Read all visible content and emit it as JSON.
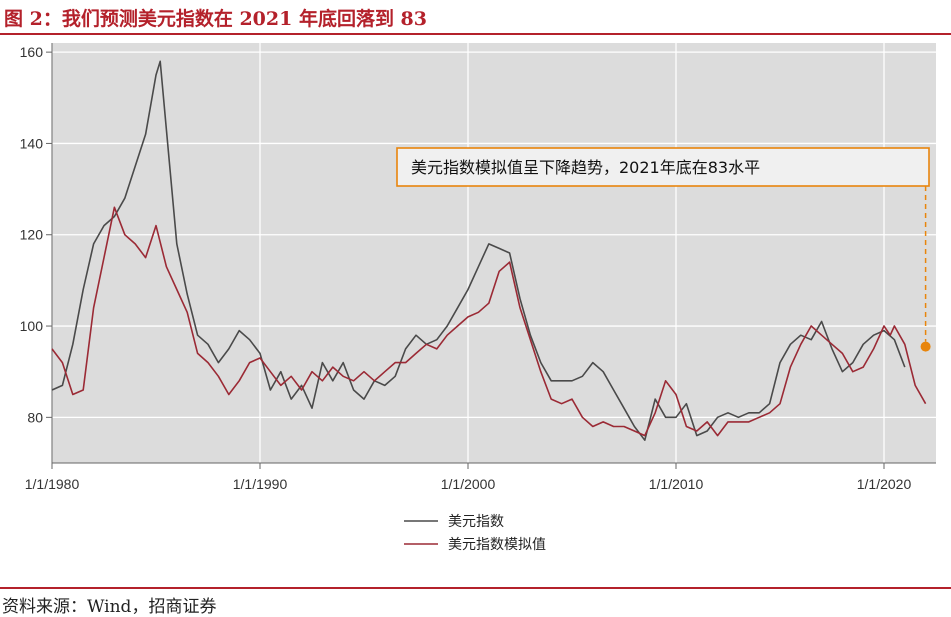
{
  "figure_title": "图 2：我们预测美元指数在 2021 年底回落到 83",
  "source_note": "资料来源：Wind，招商证券",
  "colors": {
    "accent": "#b4212b",
    "dxy_line": "#4a4a4a",
    "model_line": "#9b2a35",
    "annotation": "#e8850c",
    "plot_bg": "#dcdcdc"
  },
  "chart_data": {
    "type": "line",
    "title": "",
    "xlabel": "",
    "ylabel": "",
    "xlim": [
      1980,
      2022.5
    ],
    "ylim": [
      70,
      162
    ],
    "grid": true,
    "legend_position": "bottom-center",
    "x_ticks": [
      {
        "value": 1980,
        "label": "1/1/1980"
      },
      {
        "value": 1990,
        "label": "1/1/1990"
      },
      {
        "value": 2000,
        "label": "1/1/2000"
      },
      {
        "value": 2010,
        "label": "1/1/2010"
      },
      {
        "value": 2020,
        "label": "1/1/2020"
      }
    ],
    "y_ticks": [
      {
        "value": 80,
        "label": "80"
      },
      {
        "value": 100,
        "label": "100"
      },
      {
        "value": 120,
        "label": "120"
      },
      {
        "value": 140,
        "label": "140"
      },
      {
        "value": 160,
        "label": "160"
      }
    ],
    "series": [
      {
        "name": "美元指数",
        "color": "#4a4a4a",
        "x": [
          1980.0,
          1980.5,
          1981.0,
          1981.5,
          1982.0,
          1982.5,
          1983.0,
          1983.5,
          1984.0,
          1984.5,
          1985.0,
          1985.2,
          1985.5,
          1986.0,
          1986.5,
          1987.0,
          1987.5,
          1988.0,
          1988.5,
          1989.0,
          1989.5,
          1990.0,
          1990.5,
          1991.0,
          1991.5,
          1992.0,
          1992.5,
          1993.0,
          1993.5,
          1994.0,
          1994.5,
          1995.0,
          1995.5,
          1996.0,
          1996.5,
          1997.0,
          1997.5,
          1998.0,
          1998.5,
          1999.0,
          1999.5,
          2000.0,
          2000.5,
          2001.0,
          2001.5,
          2002.0,
          2002.5,
          2003.0,
          2003.5,
          2004.0,
          2004.5,
          2005.0,
          2005.5,
          2006.0,
          2006.5,
          2007.0,
          2007.5,
          2008.0,
          2008.5,
          2009.0,
          2009.5,
          2010.0,
          2010.5,
          2011.0,
          2011.5,
          2012.0,
          2012.5,
          2013.0,
          2013.5,
          2014.0,
          2014.5,
          2015.0,
          2015.5,
          2016.0,
          2016.5,
          2017.0,
          2017.5,
          2018.0,
          2018.5,
          2019.0,
          2019.5,
          2020.0,
          2020.5,
          2021.0
        ],
        "y": [
          86,
          87,
          96,
          108,
          118,
          122,
          124,
          128,
          135,
          142,
          155,
          158,
          143,
          118,
          107,
          98,
          96,
          92,
          95,
          99,
          97,
          94,
          86,
          90,
          84,
          87,
          82,
          92,
          88,
          92,
          86,
          84,
          88,
          87,
          89,
          95,
          98,
          96,
          97,
          100,
          104,
          108,
          113,
          118,
          117,
          116,
          106,
          98,
          92,
          88,
          88,
          88,
          89,
          92,
          90,
          86,
          82,
          78,
          75,
          84,
          80,
          80,
          83,
          76,
          77,
          80,
          81,
          80,
          81,
          81,
          83,
          92,
          96,
          98,
          97,
          101,
          95,
          90,
          92,
          96,
          98,
          99,
          97,
          91
        ]
      },
      {
        "name": "美元指数模拟值",
        "color": "#9b2a35",
        "x": [
          1980.0,
          1980.5,
          1981.0,
          1981.5,
          1982.0,
          1982.5,
          1983.0,
          1983.5,
          1984.0,
          1984.5,
          1985.0,
          1985.5,
          1986.0,
          1986.5,
          1987.0,
          1987.5,
          1988.0,
          1988.5,
          1989.0,
          1989.5,
          1990.0,
          1990.5,
          1991.0,
          1991.5,
          1992.0,
          1992.5,
          1993.0,
          1993.5,
          1994.0,
          1994.5,
          1995.0,
          1995.5,
          1996.0,
          1996.5,
          1997.0,
          1997.5,
          1998.0,
          1998.5,
          1999.0,
          1999.5,
          2000.0,
          2000.5,
          2001.0,
          2001.5,
          2002.0,
          2002.5,
          2003.0,
          2003.5,
          2004.0,
          2004.5,
          2005.0,
          2005.5,
          2006.0,
          2006.5,
          2007.0,
          2007.5,
          2008.0,
          2008.5,
          2009.0,
          2009.5,
          2010.0,
          2010.5,
          2011.0,
          2011.5,
          2012.0,
          2012.5,
          2013.0,
          2013.5,
          2014.0,
          2014.5,
          2015.0,
          2015.5,
          2016.0,
          2016.5,
          2017.0,
          2017.5,
          2018.0,
          2018.5,
          2019.0,
          2019.5,
          2020.0,
          2020.3,
          2020.5,
          2021.0,
          2021.5,
          2022.0
        ],
        "y": [
          95,
          92,
          85,
          86,
          104,
          115,
          126,
          120,
          118,
          115,
          122,
          113,
          108,
          103,
          94,
          92,
          89,
          85,
          88,
          92,
          93,
          90,
          87,
          89,
          86,
          90,
          88,
          91,
          89,
          88,
          90,
          88,
          90,
          92,
          92,
          94,
          96,
          95,
          98,
          100,
          102,
          103,
          105,
          112,
          114,
          104,
          97,
          90,
          84,
          83,
          84,
          80,
          78,
          79,
          78,
          78,
          77,
          76,
          81,
          88,
          85,
          78,
          77,
          79,
          76,
          79,
          79,
          79,
          80,
          81,
          83,
          91,
          96,
          100,
          98,
          96,
          94,
          90,
          91,
          95,
          100,
          98,
          100,
          96,
          87,
          83
        ]
      }
    ],
    "annotation": {
      "text": "美元指数模拟值呈下降趋势，2021年底在83水平",
      "point": {
        "x": 2022.0,
        "y": 95.5
      }
    }
  }
}
